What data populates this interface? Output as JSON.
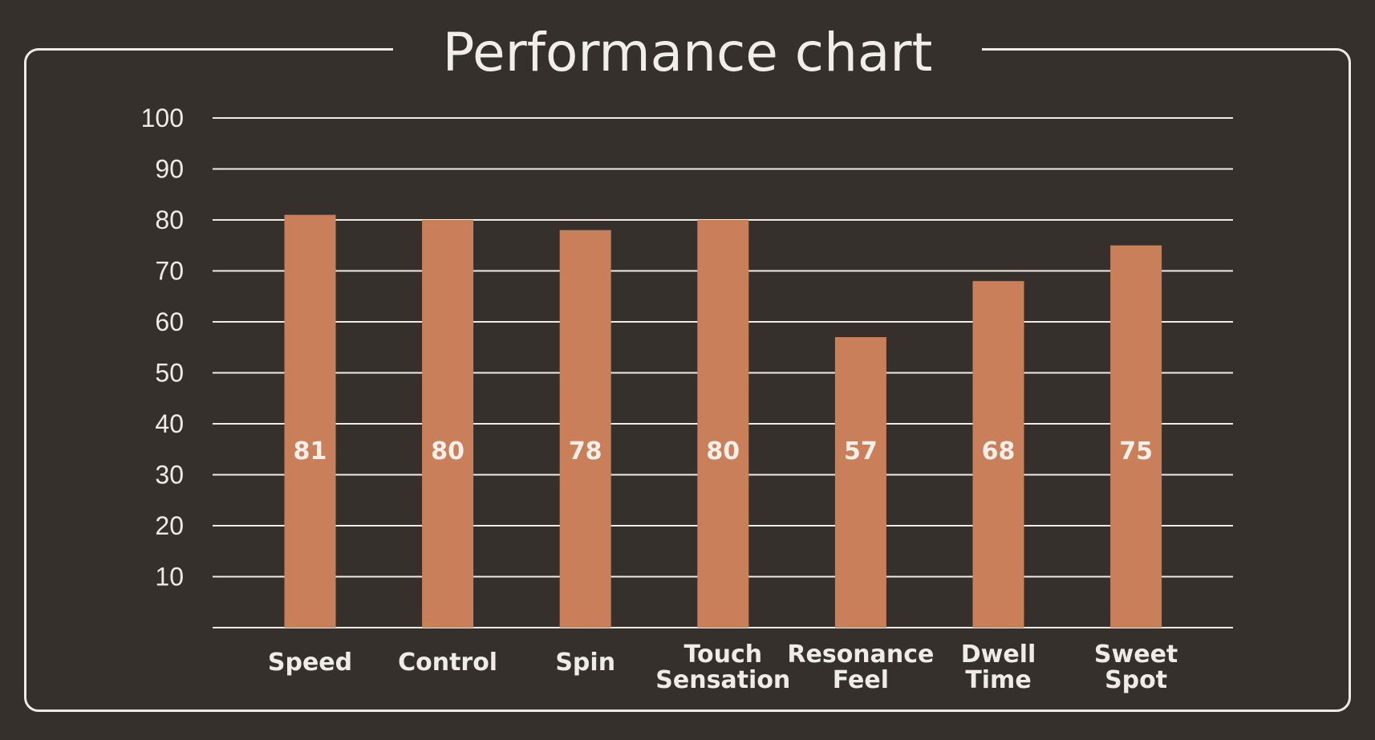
{
  "title": "Performance chart",
  "colors": {
    "background": "#35302b",
    "bar": "#c9805a",
    "text": "#efebe6",
    "grid": "#efebe6"
  },
  "chart_data": {
    "type": "bar",
    "title": "Performance chart",
    "xlabel": "",
    "ylabel": "",
    "categories": [
      [
        "Speed"
      ],
      [
        "Control"
      ],
      [
        "Spin"
      ],
      [
        "Touch",
        "Sensation"
      ],
      [
        "Resonance",
        "Feel"
      ],
      [
        "Dwell",
        "Time"
      ],
      [
        "Sweet",
        "Spot"
      ]
    ],
    "values": [
      81,
      80,
      78,
      80,
      57,
      68,
      75
    ],
    "value_labels": [
      "81",
      "80",
      "78",
      "80",
      "57",
      "68",
      "75"
    ],
    "ylim": [
      0,
      100
    ],
    "yticks": [
      10,
      20,
      30,
      40,
      50,
      60,
      70,
      80,
      90,
      100
    ],
    "grid": true,
    "legend": "none"
  }
}
